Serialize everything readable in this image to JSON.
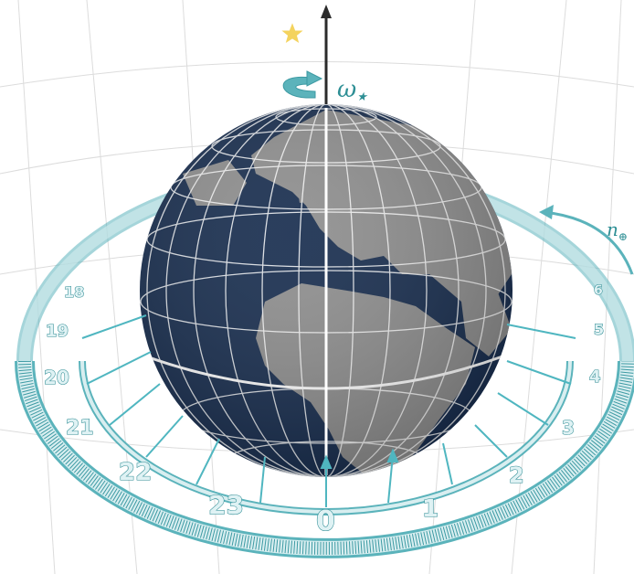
{
  "labels": {
    "omega": "ω",
    "omega_sub": "★",
    "n": "n",
    "n_sub": "⊕"
  },
  "hour_ring": {
    "labels": [
      "0",
      "1",
      "2",
      "3",
      "4",
      "5",
      "6",
      "18",
      "19",
      "20",
      "21",
      "22",
      "23"
    ]
  },
  "colors": {
    "ocean": "#13294b",
    "land": "#8c8c8c",
    "ring": "#5bb3bb",
    "ring_fill": "#d8eef0",
    "arrow": "#4fb6c0",
    "axis": "#2b2b2b",
    "grid": "#d9d9d9",
    "star": "#f4d35e"
  },
  "icons": {
    "star": "star-icon",
    "rotation": "rotation-arrow-icon",
    "orbit": "orbit-arrow-icon"
  }
}
